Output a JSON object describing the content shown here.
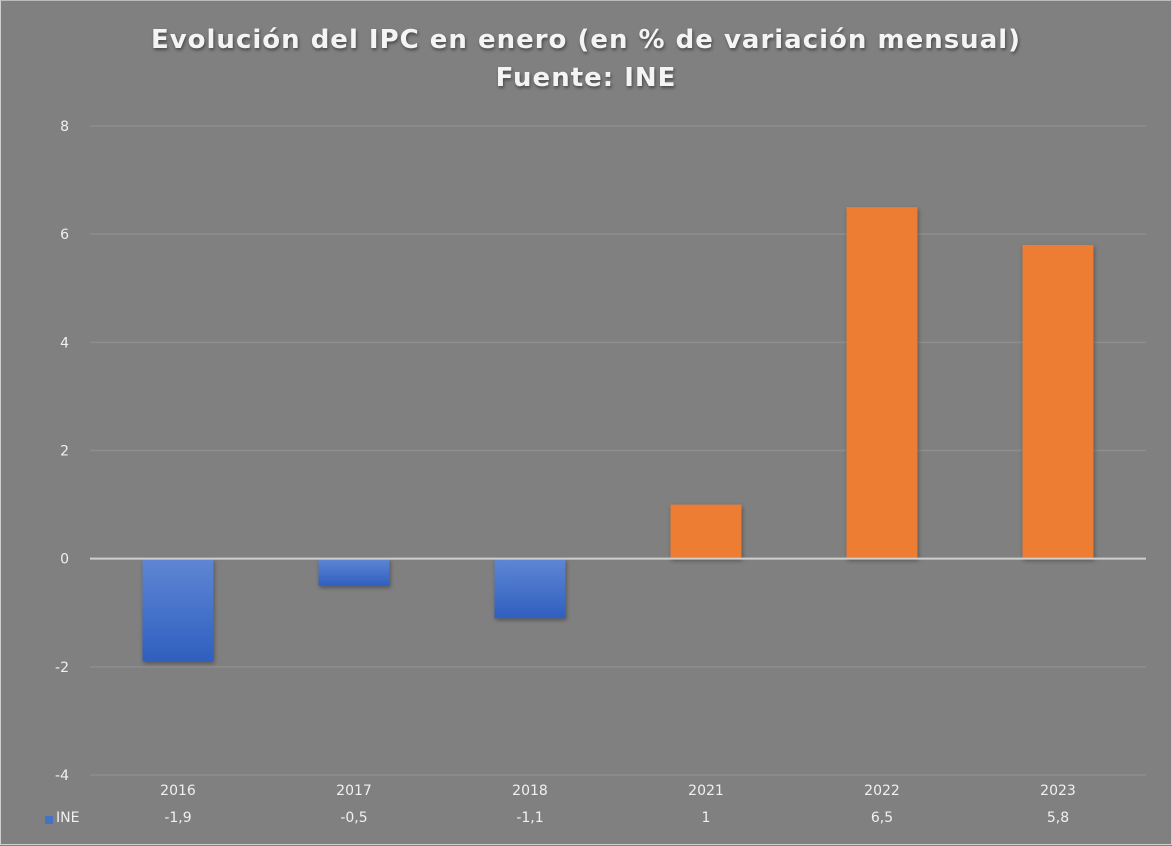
{
  "chart_data": {
    "type": "bar",
    "title": "Evolución del IPC en enero (en % de variación mensual)",
    "subtitle": "Fuente: INE",
    "categories": [
      "2016",
      "2017",
      "2018",
      "2021",
      "2022",
      "2023"
    ],
    "series": [
      {
        "name": "INE",
        "values": [
          -1.9,
          -0.5,
          -1.1,
          1,
          6.5,
          5.8
        ]
      }
    ],
    "data_table_values": [
      "-1,9",
      "-0,5",
      "-1,1",
      "1",
      "6,5",
      "5,8"
    ],
    "ylim": [
      -4,
      8
    ],
    "yticks": [
      "-4",
      "-2",
      "0",
      "2",
      "4",
      "6",
      "8"
    ],
    "grid": true,
    "legend": "data-table-bottom-left",
    "colors": {
      "negative": "#4472c4",
      "positive": "#ed7d31",
      "background": "#808080"
    }
  }
}
